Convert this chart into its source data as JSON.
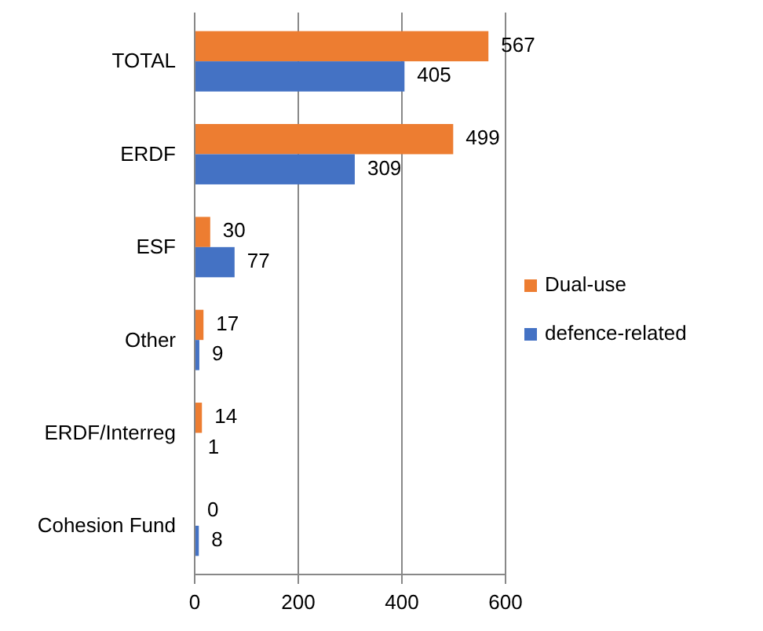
{
  "chart_data": {
    "type": "bar",
    "orientation": "horizontal",
    "categories": [
      "TOTAL",
      "ERDF",
      "ESF",
      "Other",
      "ERDF/Interreg",
      "Cohesion Fund"
    ],
    "series": [
      {
        "name": "Dual-use",
        "color": "#ed7d31",
        "values": [
          567,
          499,
          30,
          17,
          14,
          0
        ]
      },
      {
        "name": "defence-related",
        "color": "#4472c4",
        "values": [
          405,
          309,
          77,
          9,
          1,
          8
        ]
      }
    ],
    "xlim": [
      0,
      600
    ],
    "xticks": [
      0,
      200,
      400,
      600
    ],
    "grid": "x",
    "legend": "right",
    "data_labels": true
  }
}
